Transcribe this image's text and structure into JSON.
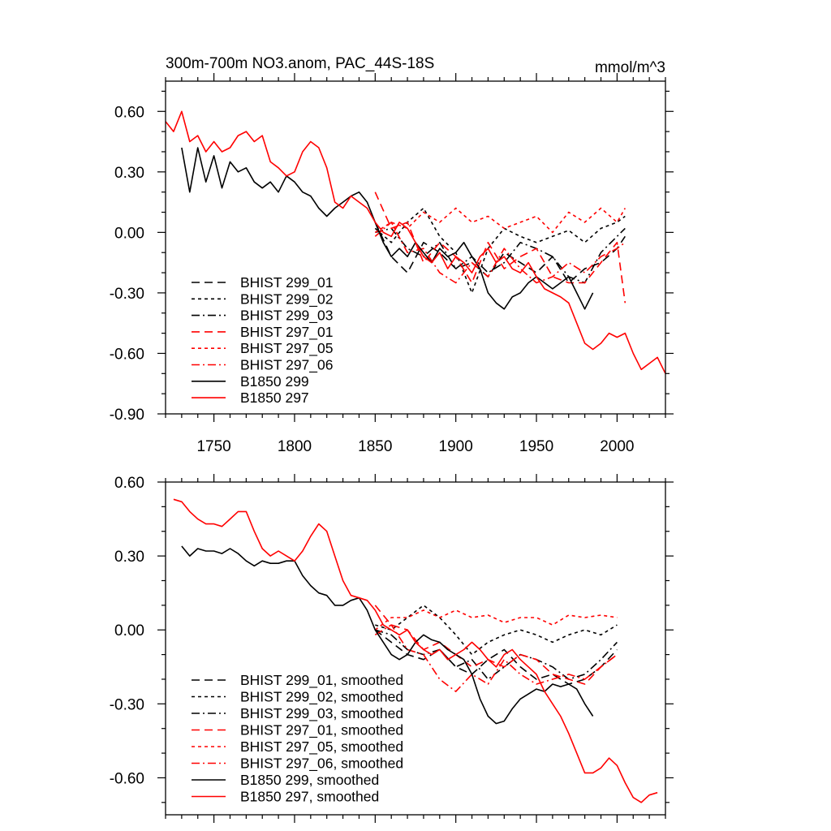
{
  "chart_data": [
    {
      "type": "line",
      "title": "300m-700m NO3.anom, PAC_44S-18S",
      "units": "mmol/m^3",
      "xlim": [
        1720,
        2030
      ],
      "ylim": [
        -0.9,
        0.75
      ],
      "xticks": [
        1750,
        1800,
        1850,
        1900,
        1950,
        2000
      ],
      "yticks": [
        0.6,
        0.3,
        0.0,
        -0.3,
        -0.6,
        -0.9
      ],
      "ytick_labels": [
        "0.60",
        "0.30",
        "0.00",
        "-0.30",
        "-0.60",
        "-0.90"
      ],
      "legend_position": "bottom-left",
      "series": [
        {
          "name": "BHIST 299_01",
          "color": "#000000",
          "dash": "long-dash",
          "x": [
            1850,
            1860,
            1870,
            1880,
            1890,
            1900,
            1910,
            1920,
            1930,
            1940,
            1950,
            1960,
            1970,
            1980,
            1990,
            2000,
            2005
          ],
          "y": [
            0.05,
            -0.12,
            -0.2,
            -0.05,
            -0.1,
            -0.18,
            -0.15,
            -0.22,
            -0.1,
            -0.15,
            -0.2,
            -0.12,
            -0.25,
            -0.18,
            -0.15,
            -0.08,
            -0.02
          ]
        },
        {
          "name": "BHIST 299_02",
          "color": "#000000",
          "dash": "short-dash",
          "x": [
            1850,
            1860,
            1870,
            1880,
            1890,
            1900,
            1910,
            1920,
            1930,
            1940,
            1950,
            1960,
            1970,
            1980,
            1990,
            2000,
            2005
          ],
          "y": [
            0.02,
            -0.05,
            0.05,
            0.12,
            -0.02,
            -0.1,
            -0.3,
            -0.08,
            0.02,
            -0.02,
            -0.05,
            -0.02,
            0.01,
            -0.05,
            0.02,
            0.05,
            0.08
          ]
        },
        {
          "name": "BHIST 299_03",
          "color": "#000000",
          "dash": "dash-dot",
          "x": [
            1850,
            1860,
            1870,
            1880,
            1890,
            1900,
            1910,
            1920,
            1930,
            1940,
            1950,
            1960,
            1970,
            1980,
            1990,
            2000,
            2005
          ],
          "y": [
            0.0,
            0.02,
            -0.08,
            -0.12,
            -0.05,
            -0.18,
            -0.12,
            -0.2,
            -0.15,
            -0.05,
            -0.08,
            -0.12,
            -0.22,
            -0.25,
            -0.1,
            -0.02,
            0.02
          ]
        },
        {
          "name": "BHIST 297_01",
          "color": "#ff0000",
          "dash": "long-dash",
          "x": [
            1850,
            1860,
            1870,
            1880,
            1890,
            1900,
            1910,
            1920,
            1930,
            1940,
            1950,
            1960,
            1970,
            1980,
            1990,
            2000,
            2005
          ],
          "y": [
            0.2,
            0.02,
            0.05,
            -0.15,
            -0.05,
            -0.12,
            -0.25,
            -0.05,
            -0.18,
            -0.12,
            -0.08,
            -0.22,
            -0.25,
            -0.25,
            -0.15,
            -0.05,
            -0.35
          ]
        },
        {
          "name": "BHIST 297_05",
          "color": "#ff0000",
          "dash": "short-dash",
          "x": [
            1850,
            1860,
            1870,
            1880,
            1890,
            1900,
            1910,
            1920,
            1930,
            1940,
            1950,
            1960,
            1970,
            1980,
            1990,
            2000,
            2005
          ],
          "y": [
            0.0,
            0.05,
            0.02,
            0.1,
            0.05,
            0.12,
            0.05,
            0.08,
            0.02,
            0.05,
            0.08,
            0.0,
            0.1,
            0.05,
            0.12,
            0.05,
            0.12
          ]
        },
        {
          "name": "BHIST 297_06",
          "color": "#ff0000",
          "dash": "dash-dot",
          "x": [
            1850,
            1860,
            1870,
            1880,
            1890,
            1900,
            1910,
            1920,
            1930,
            1940,
            1950,
            1960,
            1970,
            1980,
            1990,
            2000,
            2005
          ],
          "y": [
            -0.02,
            0.05,
            -0.1,
            -0.08,
            -0.2,
            -0.25,
            -0.15,
            -0.22,
            -0.08,
            -0.18,
            -0.25,
            -0.22,
            -0.15,
            -0.2,
            -0.12,
            -0.08,
            -0.05
          ]
        },
        {
          "name": "B1850 299",
          "color": "#000000",
          "dash": "solid",
          "x": [
            1730,
            1735,
            1740,
            1745,
            1750,
            1755,
            1760,
            1765,
            1770,
            1775,
            1780,
            1785,
            1790,
            1795,
            1800,
            1805,
            1810,
            1815,
            1820,
            1825,
            1830,
            1835,
            1840,
            1845,
            1850,
            1855,
            1860,
            1865,
            1870,
            1875,
            1880,
            1885,
            1890,
            1895,
            1900,
            1905,
            1910,
            1915,
            1920,
            1925,
            1930,
            1935,
            1940,
            1945,
            1950,
            1955,
            1960,
            1965,
            1970,
            1975,
            1980,
            1985
          ],
          "y": [
            0.42,
            0.2,
            0.42,
            0.25,
            0.38,
            0.22,
            0.35,
            0.3,
            0.32,
            0.25,
            0.22,
            0.25,
            0.2,
            0.28,
            0.25,
            0.2,
            0.18,
            0.12,
            0.08,
            0.12,
            0.15,
            0.18,
            0.2,
            0.15,
            0.05,
            -0.05,
            -0.12,
            -0.08,
            -0.12,
            -0.05,
            -0.1,
            -0.15,
            -0.08,
            -0.12,
            -0.1,
            -0.05,
            -0.12,
            -0.18,
            -0.3,
            -0.35,
            -0.38,
            -0.32,
            -0.3,
            -0.25,
            -0.22,
            -0.25,
            -0.28,
            -0.25,
            -0.22,
            -0.3,
            -0.38,
            -0.3
          ]
        },
        {
          "name": "B1850 297",
          "color": "#ff0000",
          "dash": "solid",
          "x": [
            1720,
            1725,
            1730,
            1735,
            1740,
            1745,
            1750,
            1755,
            1760,
            1765,
            1770,
            1775,
            1780,
            1785,
            1790,
            1795,
            1800,
            1805,
            1810,
            1815,
            1820,
            1825,
            1830,
            1835,
            1840,
            1845,
            1850,
            1855,
            1860,
            1865,
            1870,
            1875,
            1880,
            1885,
            1890,
            1895,
            1900,
            1905,
            1910,
            1915,
            1920,
            1925,
            1930,
            1935,
            1940,
            1945,
            1950,
            1955,
            1960,
            1965,
            1970,
            1975,
            1980,
            1985,
            1990,
            1995,
            2000,
            2005,
            2010,
            2015,
            2020,
            2025,
            2030
          ],
          "y": [
            0.55,
            0.5,
            0.6,
            0.45,
            0.48,
            0.4,
            0.45,
            0.4,
            0.42,
            0.48,
            0.5,
            0.45,
            0.48,
            0.35,
            0.32,
            0.28,
            0.3,
            0.4,
            0.45,
            0.42,
            0.32,
            0.15,
            0.12,
            0.18,
            0.15,
            0.12,
            0.05,
            0.0,
            -0.02,
            0.05,
            0.02,
            -0.05,
            -0.12,
            -0.15,
            -0.1,
            -0.18,
            -0.12,
            -0.15,
            -0.2,
            -0.12,
            -0.08,
            -0.15,
            -0.12,
            -0.18,
            -0.2,
            -0.15,
            -0.22,
            -0.28,
            -0.3,
            -0.32,
            -0.35,
            -0.45,
            -0.55,
            -0.58,
            -0.55,
            -0.5,
            -0.52,
            -0.5,
            -0.6,
            -0.68,
            -0.65,
            -0.62,
            -0.7
          ]
        }
      ]
    },
    {
      "type": "line",
      "xlim": [
        1720,
        2030
      ],
      "ylim": [
        -0.75,
        0.6
      ],
      "yticks": [
        0.6,
        0.3,
        0.0,
        -0.3,
        -0.6
      ],
      "ytick_labels": [
        "0.60",
        "0.30",
        "0.00",
        "-0.30",
        "-0.60"
      ],
      "legend_position": "bottom-left",
      "series": [
        {
          "name": "BHIST 299_01, smoothed",
          "color": "#000000",
          "dash": "long-dash",
          "x": [
            1850,
            1860,
            1870,
            1880,
            1890,
            1900,
            1910,
            1920,
            1930,
            1940,
            1950,
            1960,
            1970,
            1980,
            1990,
            2000
          ],
          "y": [
            0.0,
            -0.05,
            -0.1,
            -0.12,
            -0.08,
            -0.15,
            -0.18,
            -0.12,
            -0.08,
            -0.15,
            -0.2,
            -0.18,
            -0.22,
            -0.2,
            -0.15,
            -0.08
          ]
        },
        {
          "name": "BHIST 299_02, smoothed",
          "color": "#000000",
          "dash": "short-dash",
          "x": [
            1850,
            1860,
            1870,
            1880,
            1890,
            1900,
            1910,
            1920,
            1930,
            1940,
            1950,
            1960,
            1970,
            1980,
            1990,
            2000
          ],
          "y": [
            0.02,
            0.0,
            0.05,
            0.1,
            0.05,
            -0.02,
            -0.1,
            -0.05,
            -0.02,
            0.0,
            -0.02,
            -0.05,
            -0.02,
            0.0,
            -0.02,
            0.02
          ]
        },
        {
          "name": "BHIST 299_03, smoothed",
          "color": "#000000",
          "dash": "dash-dot",
          "x": [
            1850,
            1860,
            1870,
            1880,
            1890,
            1900,
            1910,
            1920,
            1930,
            1940,
            1950,
            1960,
            1970,
            1980,
            1990,
            2000
          ],
          "y": [
            0.0,
            -0.02,
            -0.08,
            -0.1,
            -0.08,
            -0.15,
            -0.12,
            -0.2,
            -0.15,
            -0.1,
            -0.12,
            -0.15,
            -0.2,
            -0.18,
            -0.12,
            -0.05
          ]
        },
        {
          "name": "BHIST 297_01, smoothed",
          "color": "#ff0000",
          "dash": "long-dash",
          "x": [
            1850,
            1860,
            1870,
            1880,
            1890,
            1900,
            1910,
            1920,
            1930,
            1940,
            1950,
            1960,
            1970,
            1980,
            1990,
            2000
          ],
          "y": [
            0.1,
            0.02,
            0.0,
            -0.08,
            -0.05,
            -0.1,
            -0.15,
            -0.12,
            -0.15,
            -0.1,
            -0.12,
            -0.18,
            -0.2,
            -0.22,
            -0.15,
            -0.1
          ]
        },
        {
          "name": "BHIST 297_05, smoothed",
          "color": "#ff0000",
          "dash": "short-dash",
          "x": [
            1850,
            1860,
            1870,
            1880,
            1890,
            1900,
            1910,
            1920,
            1930,
            1940,
            1950,
            1960,
            1970,
            1980,
            1990,
            2000
          ],
          "y": [
            0.0,
            0.05,
            0.05,
            0.08,
            0.05,
            0.08,
            0.05,
            0.06,
            0.03,
            0.05,
            0.05,
            0.02,
            0.06,
            0.05,
            0.06,
            0.05
          ]
        },
        {
          "name": "BHIST 297_06, smoothed",
          "color": "#ff0000",
          "dash": "dash-dot",
          "x": [
            1850,
            1860,
            1870,
            1880,
            1890,
            1900,
            1910,
            1920,
            1930,
            1940,
            1950,
            1960,
            1970,
            1980,
            1990,
            2000
          ],
          "y": [
            -0.02,
            0.02,
            -0.08,
            -0.1,
            -0.2,
            -0.25,
            -0.18,
            -0.22,
            -0.12,
            -0.18,
            -0.22,
            -0.2,
            -0.18,
            -0.2,
            -0.15,
            -0.1
          ]
        },
        {
          "name": "B1850 299, smoothed",
          "color": "#000000",
          "dash": "solid",
          "x": [
            1730,
            1735,
            1740,
            1745,
            1750,
            1755,
            1760,
            1765,
            1770,
            1775,
            1780,
            1785,
            1790,
            1795,
            1800,
            1805,
            1810,
            1815,
            1820,
            1825,
            1830,
            1835,
            1840,
            1845,
            1850,
            1855,
            1860,
            1865,
            1870,
            1875,
            1880,
            1885,
            1890,
            1895,
            1900,
            1905,
            1910,
            1915,
            1920,
            1925,
            1930,
            1935,
            1940,
            1945,
            1950,
            1955,
            1960,
            1965,
            1970,
            1975,
            1980,
            1985
          ],
          "y": [
            0.34,
            0.3,
            0.33,
            0.32,
            0.32,
            0.31,
            0.33,
            0.31,
            0.28,
            0.26,
            0.28,
            0.27,
            0.27,
            0.28,
            0.28,
            0.22,
            0.18,
            0.15,
            0.14,
            0.1,
            0.1,
            0.12,
            0.13,
            0.08,
            0.0,
            -0.05,
            -0.1,
            -0.12,
            -0.1,
            -0.05,
            -0.02,
            -0.04,
            -0.05,
            -0.08,
            -0.1,
            -0.12,
            -0.18,
            -0.28,
            -0.35,
            -0.38,
            -0.37,
            -0.32,
            -0.28,
            -0.26,
            -0.24,
            -0.25,
            -0.22,
            -0.23,
            -0.22,
            -0.24,
            -0.3,
            -0.35
          ]
        },
        {
          "name": "B1850 297, smoothed",
          "color": "#ff0000",
          "dash": "solid",
          "x": [
            1725,
            1730,
            1735,
            1740,
            1745,
            1750,
            1755,
            1760,
            1765,
            1770,
            1775,
            1780,
            1785,
            1790,
            1795,
            1800,
            1805,
            1810,
            1815,
            1820,
            1825,
            1830,
            1835,
            1840,
            1845,
            1850,
            1855,
            1860,
            1865,
            1870,
            1875,
            1880,
            1885,
            1890,
            1895,
            1900,
            1905,
            1910,
            1915,
            1920,
            1925,
            1930,
            1935,
            1940,
            1945,
            1950,
            1955,
            1960,
            1965,
            1970,
            1975,
            1980,
            1985,
            1990,
            1995,
            2000,
            2005,
            2010,
            2015,
            2020,
            2025
          ],
          "y": [
            0.53,
            0.52,
            0.48,
            0.45,
            0.43,
            0.43,
            0.42,
            0.45,
            0.48,
            0.48,
            0.4,
            0.33,
            0.3,
            0.32,
            0.3,
            0.28,
            0.32,
            0.38,
            0.43,
            0.4,
            0.3,
            0.2,
            0.14,
            0.13,
            0.12,
            0.08,
            0.02,
            0.0,
            -0.02,
            0.0,
            -0.05,
            -0.08,
            -0.1,
            -0.08,
            -0.12,
            -0.1,
            -0.08,
            -0.05,
            -0.08,
            -0.12,
            -0.15,
            -0.1,
            -0.08,
            -0.12,
            -0.15,
            -0.18,
            -0.25,
            -0.3,
            -0.35,
            -0.42,
            -0.5,
            -0.58,
            -0.58,
            -0.56,
            -0.52,
            -0.55,
            -0.62,
            -0.68,
            -0.7,
            -0.67,
            -0.66
          ]
        }
      ]
    }
  ]
}
